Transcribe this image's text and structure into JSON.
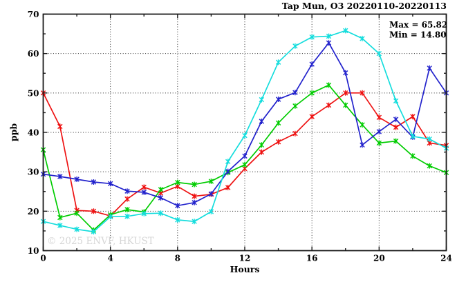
{
  "header": {
    "title": "Tap Mun, O3 20220110-20220113"
  },
  "stats": {
    "max_label": "Max = 65.82",
    "min_label": "Min = 14.80"
  },
  "watermark": "© 2025 ENVF, HKUST",
  "axes": {
    "ylabel": "ppb",
    "xlabel": "Hours"
  },
  "chart_data": {
    "type": "line",
    "title": "Tap Mun, O3 20220110-20220113",
    "xlabel": "Hours",
    "ylabel": "ppb",
    "xlim": [
      0,
      24
    ],
    "ylim": [
      10,
      70
    ],
    "x_major_ticks": [
      0,
      4,
      8,
      12,
      16,
      20,
      24
    ],
    "x_minor_ticks": [
      2,
      6,
      10,
      14,
      18,
      22
    ],
    "y_major_ticks": [
      10,
      20,
      30,
      40,
      50,
      60,
      70
    ],
    "y_minor_ticks": [
      15,
      25,
      35,
      45,
      55,
      65
    ],
    "grid_x_values": [
      4,
      8,
      12,
      16,
      20
    ],
    "grid_y_values": [
      20,
      30,
      40,
      50,
      60
    ],
    "grid_style": "dotted",
    "legend": "none",
    "marker": "asterisk",
    "annotations": {
      "max": 65.82,
      "min": 14.8
    },
    "x": [
      0,
      1,
      2,
      3,
      4,
      5,
      6,
      7,
      8,
      9,
      10,
      11,
      12,
      13,
      14,
      15,
      16,
      17,
      18,
      19,
      20,
      21,
      22,
      23,
      24
    ],
    "series": [
      {
        "name": "series-red",
        "color": "#ee1111",
        "values": [
          50.0,
          41.5,
          20.2,
          20.0,
          18.8,
          23.1,
          26.1,
          24.6,
          26.3,
          23.8,
          24.3,
          26.0,
          30.8,
          35.0,
          37.6,
          39.7,
          44.0,
          46.9,
          50.0,
          50.0,
          43.8,
          41.3,
          44.0,
          37.3,
          36.7
        ]
      },
      {
        "name": "series-green",
        "color": "#00cc00",
        "values": [
          35.6,
          18.4,
          19.5,
          15.2,
          19.1,
          20.4,
          19.8,
          25.5,
          27.3,
          26.8,
          27.6,
          29.8,
          31.8,
          36.8,
          42.4,
          46.7,
          50.0,
          52.0,
          46.9,
          41.9,
          37.3,
          37.8,
          34.0,
          31.5,
          29.8
        ]
      },
      {
        "name": "series-blue",
        "color": "#2222cc",
        "values": [
          29.4,
          28.8,
          28.1,
          27.4,
          27.0,
          25.1,
          24.8,
          23.4,
          21.4,
          22.2,
          24.4,
          30.1,
          34.0,
          42.8,
          48.4,
          50.1,
          57.3,
          62.7,
          55.1,
          36.8,
          40.2,
          43.3,
          38.8,
          56.3,
          50.0
        ]
      },
      {
        "name": "series-cyan",
        "color": "#15dddd",
        "values": [
          17.4,
          16.4,
          15.4,
          14.8,
          18.6,
          18.7,
          19.4,
          19.5,
          17.8,
          17.4,
          19.9,
          32.6,
          39.2,
          48.3,
          57.8,
          61.9,
          64.2,
          64.4,
          65.82,
          63.8,
          60.0,
          48.0,
          39.0,
          38.3,
          36.0
        ]
      }
    ]
  }
}
